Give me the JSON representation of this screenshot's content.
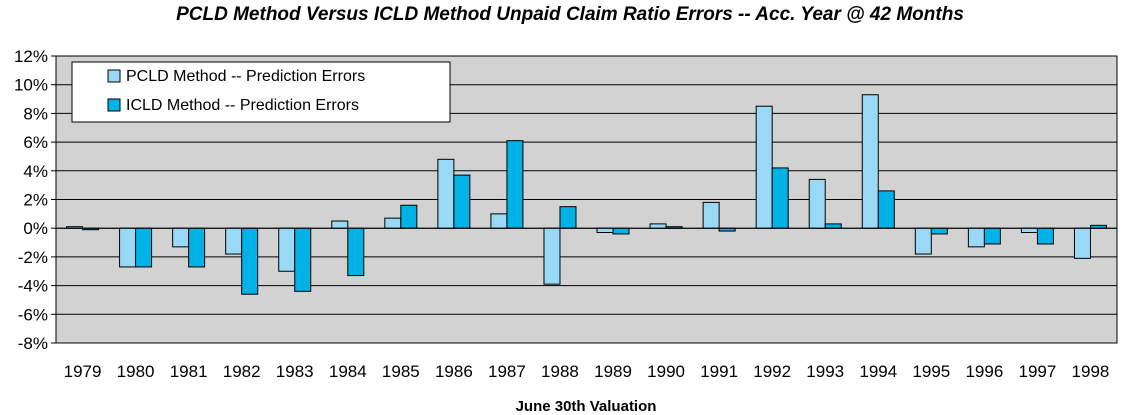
{
  "chart_data": {
    "type": "bar",
    "title": "PCLD Method Versus ICLD Method Unpaid Claim Ratio Errors -- Acc. Year @ 42 Months",
    "xlabel": "June 30th Valuation",
    "ylabel": "",
    "ylim": [
      -8,
      12
    ],
    "y_ticks": [
      "12%",
      "10%",
      "8%",
      "6%",
      "4%",
      "2%",
      "0%",
      "-2%",
      "-4%",
      "-6%",
      "-8%"
    ],
    "y_tick_values": [
      12,
      10,
      8,
      6,
      4,
      2,
      0,
      -2,
      -4,
      -6,
      -8
    ],
    "grid": true,
    "legend_position": "top-left",
    "categories": [
      "1979",
      "1980",
      "1981",
      "1982",
      "1983",
      "1984",
      "1985",
      "1986",
      "1987",
      "1988",
      "1989",
      "1990",
      "1991",
      "1992",
      "1993",
      "1994",
      "1995",
      "1996",
      "1997",
      "1998"
    ],
    "series": [
      {
        "name": "PCLD Method -- Prediction Errors",
        "color": "#99D9F5",
        "values": [
          0,
          -2.7,
          -1.3,
          -1.8,
          -3.0,
          0.5,
          0.7,
          4.8,
          1.0,
          -3.9,
          -0.3,
          0.3,
          1.8,
          8.5,
          3.4,
          9.3,
          -1.8,
          -1.3,
          -0.3,
          -2.1
        ]
      },
      {
        "name": "ICLD Method -- Prediction Errors",
        "color": "#00B2E5",
        "values": [
          -0.1,
          -2.7,
          -2.7,
          -4.6,
          -4.4,
          -3.3,
          1.6,
          3.7,
          6.1,
          1.5,
          -0.4,
          0,
          -0.2,
          4.2,
          0.3,
          2.6,
          -0.4,
          -1.1,
          -1.1,
          0.2
        ]
      }
    ],
    "colors": {
      "plot_background": "#D2D2D2",
      "gridline": "#000000",
      "bar_outline": "#000000"
    }
  }
}
